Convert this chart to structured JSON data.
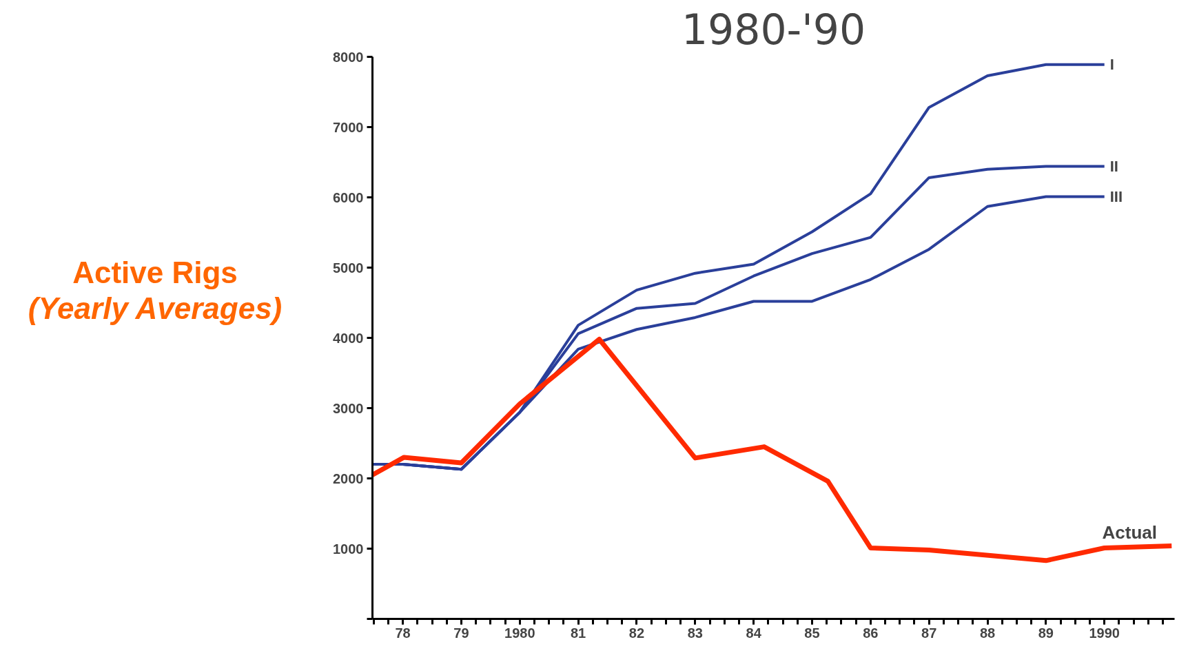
{
  "chart_data": {
    "type": "line",
    "title": "1980-'90",
    "ylabel": "Active Rigs\n(Yearly Averages)",
    "x": [
      1977.48,
      1978,
      1979,
      1980,
      1981,
      1982,
      1983,
      1984,
      1985,
      1986,
      1987,
      1988,
      1989,
      1990
    ],
    "series": [
      {
        "name": "I",
        "color": "#2a3f9a",
        "values": [
          2200,
          2200,
          2130,
          2940,
          4180,
          4680,
          4920,
          5050,
          5510,
          6050,
          7280,
          7730,
          7890,
          7890
        ]
      },
      {
        "name": "II",
        "color": "#2a3f9a",
        "values": [
          2200,
          2200,
          2130,
          2940,
          4060,
          4420,
          4490,
          4880,
          5200,
          5430,
          6280,
          6400,
          6440,
          6440
        ]
      },
      {
        "name": "III",
        "color": "#2a3f9a",
        "values": [
          2200,
          2200,
          2130,
          2940,
          3840,
          4120,
          4290,
          4520,
          4520,
          4830,
          5260,
          5870,
          6010,
          6010
        ]
      },
      {
        "name": "Actual",
        "color": "#ff2a00",
        "x": [
          1977.48,
          1978.02,
          1979,
          1980,
          1981.36,
          1983,
          1984.18,
          1985.27,
          1986,
          1987,
          1989,
          1990,
          1991.15
        ],
        "values": [
          2050,
          2300,
          2220,
          3060,
          3980,
          2290,
          2450,
          1960,
          1010,
          980,
          830,
          1010,
          1040
        ]
      }
    ],
    "xlim": [
      1977.48,
      1991.2
    ],
    "ylim": [
      0,
      8000
    ],
    "xticks": [
      {
        "value": 1978,
        "label": "78"
      },
      {
        "value": 1979,
        "label": "79"
      },
      1980,
      {
        "value": 1981,
        "label": "81"
      },
      {
        "value": 1982,
        "label": "82"
      },
      {
        "value": 1983,
        "label": "83"
      },
      {
        "value": 1984,
        "label": "84"
      },
      {
        "value": 1985,
        "label": "85"
      },
      {
        "value": 1986,
        "label": "86"
      },
      {
        "value": 1987,
        "label": "87"
      },
      {
        "value": 1988,
        "label": "88"
      },
      {
        "value": 1989,
        "label": "89"
      },
      1990
    ],
    "yticks": [
      {
        "value": 0,
        "label": null
      },
      1000,
      2000,
      3000,
      4000,
      5000,
      6000,
      7000,
      8000
    ],
    "grid": false,
    "marker": "none",
    "line_style": "solid"
  }
}
